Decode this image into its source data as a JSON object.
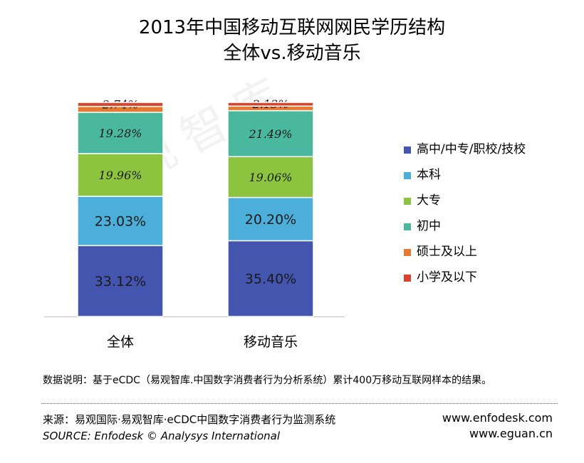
{
  "header": {
    "title_line1": "2013年中国移动互联网网民学历结构",
    "title_line2": "全体vs.移动音乐"
  },
  "watermark": "易观智库",
  "chart_data": {
    "type": "bar",
    "stacked": true,
    "percent": true,
    "ylim": [
      0,
      100
    ],
    "categories": [
      "全体",
      "移动音乐"
    ],
    "series": [
      {
        "name": "高中/中专/职校/技校",
        "color": "#4355ae",
        "values": [
          33.12,
          35.4
        ],
        "labels": [
          "33.12%",
          "35.40%"
        ]
      },
      {
        "name": "本科",
        "color": "#4bafd9",
        "values": [
          23.03,
          20.2
        ],
        "labels": [
          "23.03%",
          "20.20%"
        ]
      },
      {
        "name": "大专",
        "color": "#8dc43f",
        "values": [
          19.96,
          19.06
        ],
        "labels": [
          "19.96%",
          "19.06%"
        ]
      },
      {
        "name": "初中",
        "color": "#4ab89e",
        "values": [
          19.28,
          21.49
        ],
        "labels": [
          "19.28%",
          "21.49%"
        ]
      },
      {
        "name": "硕士及以上",
        "color": "#e8792e",
        "values": [
          2.74,
          2.13
        ],
        "labels": [
          "2.74%",
          "2.13%"
        ]
      },
      {
        "name": "小学及以下",
        "color": "#d9432c",
        "values": [
          1.87,
          1.72
        ],
        "labels": [
          "",
          ""
        ]
      }
    ],
    "legend_position": "right",
    "grid": false
  },
  "footer": {
    "note": "数据说明：基于eCDC（易观智库.中国数字消费者行为分析系统）累计400万移动互联网样本的结果。",
    "source_cn": "来源：易观国际·易观智库·eCDC中国数字消费者行为监测系统",
    "source_en": "SOURCE: Enfodesk © Analysys International",
    "url1": "www.enfodesk.com",
    "url2": "www.eguan.cn"
  }
}
